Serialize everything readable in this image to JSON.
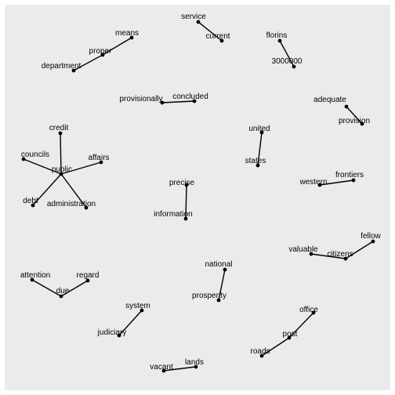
{
  "colors": {
    "panel_background": "#ebebeb",
    "edge": "#000000",
    "node": "#000000",
    "label": "#000000"
  },
  "graph": {
    "nodes": [
      {
        "id": "service",
        "label": "service"
      },
      {
        "id": "current",
        "label": "current"
      },
      {
        "id": "florins",
        "label": "florins"
      },
      {
        "id": "3000000",
        "label": "3000000"
      },
      {
        "id": "means",
        "label": "means"
      },
      {
        "id": "proper",
        "label": "proper"
      },
      {
        "id": "department",
        "label": "department"
      },
      {
        "id": "provisionally",
        "label": "provisionally"
      },
      {
        "id": "concluded",
        "label": "concluded"
      },
      {
        "id": "adequate",
        "label": "adequate"
      },
      {
        "id": "provision",
        "label": "provision"
      },
      {
        "id": "credit",
        "label": "credit"
      },
      {
        "id": "councils",
        "label": "councils"
      },
      {
        "id": "affairs",
        "label": "affairs"
      },
      {
        "id": "public",
        "label": "public"
      },
      {
        "id": "debt",
        "label": "debt"
      },
      {
        "id": "administration",
        "label": "administration"
      },
      {
        "id": "united",
        "label": "united"
      },
      {
        "id": "states",
        "label": "states"
      },
      {
        "id": "western",
        "label": "western"
      },
      {
        "id": "frontiers",
        "label": "frontiers"
      },
      {
        "id": "precise",
        "label": "precise"
      },
      {
        "id": "information",
        "label": "information"
      },
      {
        "id": "fellow",
        "label": "fellow"
      },
      {
        "id": "valuable",
        "label": "valuable"
      },
      {
        "id": "citizens",
        "label": "citizens"
      },
      {
        "id": "national",
        "label": "national"
      },
      {
        "id": "prosperity",
        "label": "prosperity"
      },
      {
        "id": "attention",
        "label": "attention"
      },
      {
        "id": "regard",
        "label": "regard"
      },
      {
        "id": "due",
        "label": "due"
      },
      {
        "id": "system",
        "label": "system"
      },
      {
        "id": "judiciary",
        "label": "judiciary"
      },
      {
        "id": "office",
        "label": "office"
      },
      {
        "id": "post",
        "label": "post"
      },
      {
        "id": "roads",
        "label": "roads"
      },
      {
        "id": "vacant",
        "label": "vacant"
      },
      {
        "id": "lands",
        "label": "lands"
      }
    ],
    "edges": [
      [
        "service",
        "current"
      ],
      [
        "florins",
        "3000000"
      ],
      [
        "means",
        "proper"
      ],
      [
        "proper",
        "department"
      ],
      [
        "provisionally",
        "concluded"
      ],
      [
        "adequate",
        "provision"
      ],
      [
        "credit",
        "public"
      ],
      [
        "councils",
        "public"
      ],
      [
        "affairs",
        "public"
      ],
      [
        "public",
        "debt"
      ],
      [
        "public",
        "administration"
      ],
      [
        "united",
        "states"
      ],
      [
        "western",
        "frontiers"
      ],
      [
        "precise",
        "information"
      ],
      [
        "fellow",
        "citizens"
      ],
      [
        "valuable",
        "citizens"
      ],
      [
        "national",
        "prosperity"
      ],
      [
        "attention",
        "due"
      ],
      [
        "regard",
        "due"
      ],
      [
        "system",
        "judiciary"
      ],
      [
        "office",
        "post"
      ],
      [
        "post",
        "roads"
      ],
      [
        "vacant",
        "lands"
      ]
    ]
  }
}
